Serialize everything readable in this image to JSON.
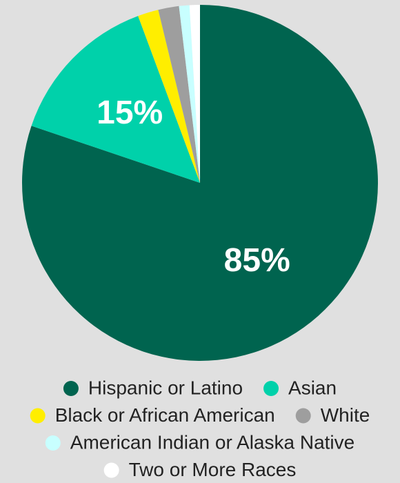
{
  "chart_data": {
    "type": "pie",
    "categories": [
      "Hispanic or Latino",
      "Asian",
      "Black or African American",
      "White",
      "American Indian or Alaska Native",
      "Two or More Races"
    ],
    "values": [
      85,
      15,
      2,
      2,
      1,
      1
    ],
    "value_labels": [
      "85%",
      "15%",
      null,
      null,
      null,
      null
    ],
    "colors": [
      "#00644f",
      "#00d1aa",
      "#ffee00",
      "#9e9e9e",
      "#c8ffff",
      "#ffffff"
    ],
    "legend": "bottom"
  }
}
